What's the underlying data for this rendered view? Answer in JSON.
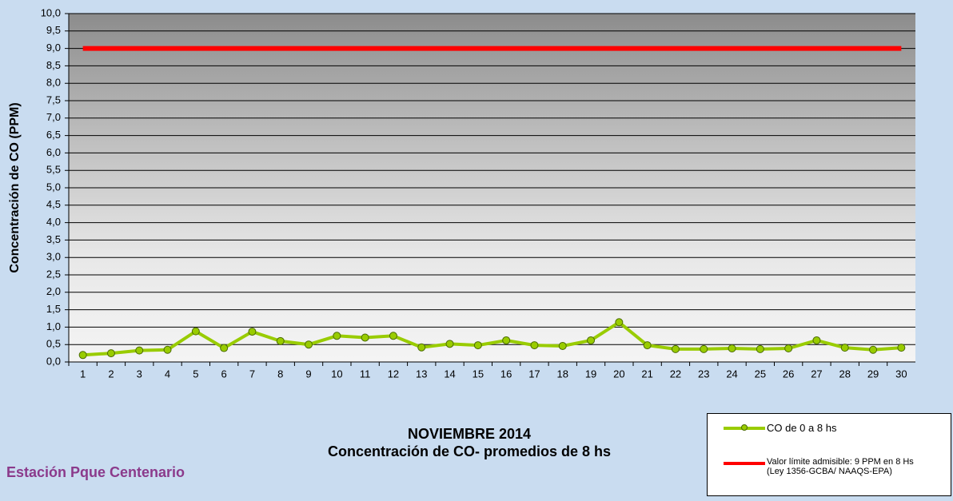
{
  "chart_data": {
    "type": "line",
    "title": "NOVIEMBRE 2014",
    "subtitle": "Concentración de CO- promedios de 8 hs",
    "annotation": "Estación Pque Centenario",
    "y_label": "Concentración de CO (PPM)",
    "categories": [
      "1",
      "2",
      "3",
      "4",
      "5",
      "6",
      "7",
      "8",
      "9",
      "10",
      "11",
      "12",
      "13",
      "14",
      "15",
      "16",
      "17",
      "18",
      "19",
      "20",
      "21",
      "22",
      "23",
      "24",
      "25",
      "26",
      "27",
      "28",
      "29",
      "30"
    ],
    "series": [
      {
        "name": "CO de 0 a 8 hs",
        "color": "#99cc00",
        "markers": true,
        "values": [
          0.2,
          0.25,
          0.33,
          0.35,
          0.88,
          0.4,
          0.87,
          0.6,
          0.5,
          0.75,
          0.7,
          0.75,
          0.42,
          0.52,
          0.48,
          0.62,
          0.48,
          0.46,
          0.62,
          1.14,
          0.48,
          0.37,
          0.37,
          0.39,
          0.37,
          0.39,
          0.62,
          0.41,
          0.35,
          0.41
        ]
      },
      {
        "name": "Valor límite admisible: 9 PPM en 8 Hs (Ley 1356-GCBA/ NAAQS-EPA)",
        "color": "#ff0000",
        "markers": false,
        "values": [
          9,
          9,
          9,
          9,
          9,
          9,
          9,
          9,
          9,
          9,
          9,
          9,
          9,
          9,
          9,
          9,
          9,
          9,
          9,
          9,
          9,
          9,
          9,
          9,
          9,
          9,
          9,
          9,
          9,
          9
        ]
      }
    ],
    "ylim": [
      0,
      10
    ],
    "yticks": [
      {
        "value": 0,
        "label": "0,0"
      },
      {
        "value": 0.5,
        "label": "0,5"
      },
      {
        "value": 1,
        "label": "1,0"
      },
      {
        "value": 1.5,
        "label": "1,5"
      },
      {
        "value": 2,
        "label": "2,0"
      },
      {
        "value": 2.5,
        "label": "2,5"
      },
      {
        "value": 3,
        "label": "3,0"
      },
      {
        "value": 3.5,
        "label": "3,5"
      },
      {
        "value": 4,
        "label": "4,0"
      },
      {
        "value": 4.5,
        "label": "4,5"
      },
      {
        "value": 5,
        "label": "5,0"
      },
      {
        "value": 5.5,
        "label": "5,5"
      },
      {
        "value": 6,
        "label": "6,0"
      },
      {
        "value": 6.5,
        "label": "6,5"
      },
      {
        "value": 7,
        "label": "7,0"
      },
      {
        "value": 7.5,
        "label": "7,5"
      },
      {
        "value": 8,
        "label": "8,0"
      },
      {
        "value": 8.5,
        "label": "8,5"
      },
      {
        "value": 9,
        "label": "9,0"
      },
      {
        "value": 9.5,
        "label": "9,5"
      },
      {
        "value": 10,
        "label": "10,0"
      }
    ],
    "grid": true
  }
}
